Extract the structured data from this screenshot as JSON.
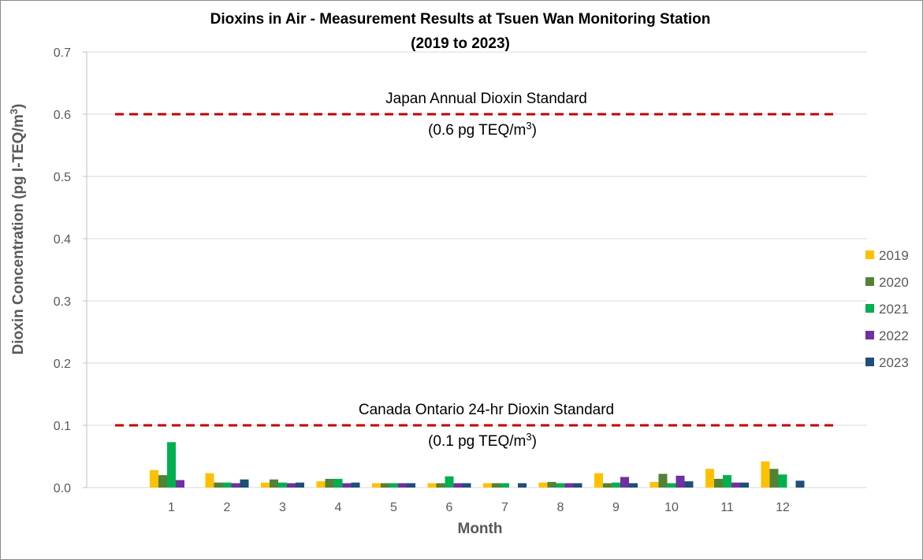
{
  "chart_data": {
    "type": "bar",
    "title": "Dioxins in Air - Measurement Results at Tsuen Wan Monitoring Station",
    "subtitle": "(2019 to 2023)",
    "xlabel": "Month",
    "ylabel": "Dioxin Concentration (pg I-TEQ/m³)",
    "ylabel_main": "Dioxin Concentration (pg I-TEQ/m",
    "ylabel_sup": "3",
    "ylabel_end": ")",
    "ylim": [
      0,
      0.7
    ],
    "yticks": [
      "0.0",
      "0.1",
      "0.2",
      "0.3",
      "0.4",
      "0.5",
      "0.6",
      "0.7"
    ],
    "ytick_values": [
      0,
      0.1,
      0.2,
      0.3,
      0.4,
      0.5,
      0.6,
      0.7
    ],
    "grid": true,
    "legend_position": "right",
    "categories": [
      "1",
      "2",
      "3",
      "4",
      "5",
      "6",
      "7",
      "8",
      "9",
      "10",
      "11",
      "12"
    ],
    "series": [
      {
        "name": "2019",
        "color": "#ffc000",
        "values": [
          0.028,
          0.023,
          0.008,
          0.01,
          0.007,
          0.007,
          0.007,
          0.008,
          0.023,
          0.009,
          0.03,
          0.042
        ]
      },
      {
        "name": "2020",
        "color": "#548235",
        "values": [
          0.02,
          0.008,
          0.013,
          0.014,
          0.007,
          0.007,
          0.007,
          0.009,
          0.007,
          0.022,
          0.014,
          0.03
        ]
      },
      {
        "name": "2021",
        "color": "#00b050",
        "values": [
          0.073,
          0.008,
          0.008,
          0.014,
          0.007,
          0.018,
          0.007,
          0.007,
          0.008,
          0.007,
          0.02,
          0.021
        ]
      },
      {
        "name": "2022",
        "color": "#7030a0",
        "values": [
          0.012,
          0.007,
          0.007,
          0.007,
          0.007,
          0.007,
          null,
          0.007,
          0.017,
          0.019,
          0.008,
          null
        ]
      },
      {
        "name": "2023",
        "color": "#1f4e79",
        "values": [
          null,
          0.013,
          0.008,
          0.008,
          0.007,
          0.007,
          0.007,
          0.007,
          0.007,
          0.01,
          0.008,
          0.011
        ]
      }
    ],
    "reference_lines": [
      {
        "value": 0.6,
        "color": "#c00000",
        "label": "Japan Annual Dioxin Standard",
        "sublabel_main": "(0.6 pg TEQ/m",
        "sublabel_sup": "3",
        "sublabel_end": ")"
      },
      {
        "value": 0.1,
        "color": "#c00000",
        "label": "Canada Ontario 24-hr Dioxin Standard",
        "sublabel_main": "(0.1 pg TEQ/m",
        "sublabel_sup": "3",
        "sublabel_end": ")"
      }
    ]
  }
}
